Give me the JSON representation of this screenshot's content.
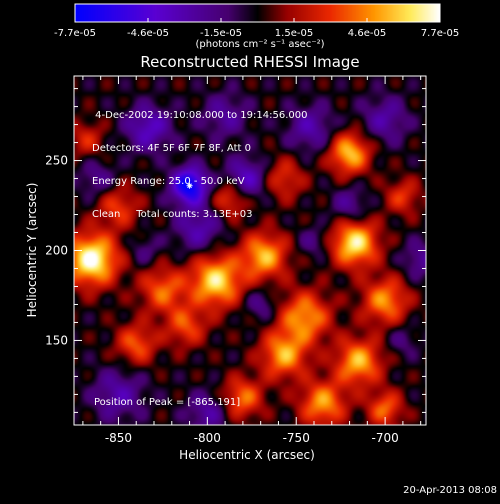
{
  "chart_data": {
    "type": "heatmap",
    "title": "Reconstructed RHESSI Image",
    "xlabel": "Heliocentric X (arcsec)",
    "ylabel": "Heliocentric Y (arcsec)",
    "xlim": [
      -875,
      -677
    ],
    "ylim": [
      103,
      297
    ],
    "x_ticks": [
      -850,
      -800,
      -750,
      -700
    ],
    "y_ticks": [
      150,
      200,
      250
    ],
    "colorbar": {
      "min": -7.7e-05,
      "max": 7.7e-05,
      "tick_labels": [
        "-7.7e-05",
        "-4.6e-05",
        "-1.5e-05",
        "1.5e-05",
        "4.6e-05",
        "7.7e-05"
      ],
      "unit_label": "(photons cm⁻² s⁻¹ asec⁻²)",
      "colormap": "rhessi blue-black-red-yellow-white",
      "colors": [
        "#0000ff",
        "#4400cc",
        "#000000",
        "#aa0000",
        "#ff4400",
        "#ffaa00",
        "#ffff88",
        "#ffffff"
      ]
    },
    "info_lines": [
      " 4-Dec-2002 19:10:08.000 to 19:14:56.000",
      "Detectors: 4F 5F 6F 7F 8F, Att 0",
      "Energy Range: 25.0 - 50.0 keV",
      "Clean     Total counts: 3.13E+03"
    ],
    "peak_label": "Position of Peak = [-865,191]",
    "blobs": [
      {
        "x": -865,
        "y": 195,
        "v": 7.7e-05,
        "s": 10
      },
      {
        "x": -795,
        "y": 183,
        "v": 6.5e-05,
        "s": 10
      },
      {
        "x": -717,
        "y": 204,
        "v": 6.8e-05,
        "s": 9
      },
      {
        "x": -720,
        "y": 254,
        "v": 5.8e-05,
        "s": 8
      },
      {
        "x": -768,
        "y": 197,
        "v": 5.5e-05,
        "s": 9
      },
      {
        "x": -745,
        "y": 163,
        "v": 5e-05,
        "s": 10
      },
      {
        "x": -700,
        "y": 172,
        "v": 4.8e-05,
        "s": 9
      },
      {
        "x": -825,
        "y": 178,
        "v": 4e-05,
        "s": 9
      },
      {
        "x": -757,
        "y": 142,
        "v": 5.2e-05,
        "s": 9
      },
      {
        "x": -715,
        "y": 138,
        "v": 5.5e-05,
        "s": 9
      },
      {
        "x": -735,
        "y": 115,
        "v": 5e-05,
        "s": 9
      },
      {
        "x": -780,
        "y": 118,
        "v": 4.2e-05,
        "s": 8
      },
      {
        "x": -700,
        "y": 112,
        "v": 4e-05,
        "s": 7
      },
      {
        "x": -812,
        "y": 158,
        "v": 3.5e-05,
        "s": 8
      },
      {
        "x": -850,
        "y": 224,
        "v": 3.2e-05,
        "s": 8
      },
      {
        "x": -787,
        "y": 229,
        "v": 3.6e-05,
        "s": 7
      },
      {
        "x": -757,
        "y": 240,
        "v": 3e-05,
        "s": 8
      },
      {
        "x": -840,
        "y": 148,
        "v": 3.8e-05,
        "s": 8
      },
      {
        "x": -690,
        "y": 230,
        "v": 3e-05,
        "s": 7
      },
      {
        "x": -868,
        "y": 262,
        "v": 2.5e-05,
        "s": 7
      },
      {
        "x": -810,
        "y": 236,
        "v": -7.7e-05,
        "s": 7
      },
      {
        "x": -778,
        "y": 240,
        "v": -4e-05,
        "s": 8
      },
      {
        "x": -833,
        "y": 268,
        "v": -3.8e-05,
        "s": 9
      },
      {
        "x": -805,
        "y": 212,
        "v": -3.2e-05,
        "s": 9
      },
      {
        "x": -742,
        "y": 268,
        "v": -3e-05,
        "s": 9
      },
      {
        "x": -700,
        "y": 273,
        "v": -2.8e-05,
        "s": 9
      },
      {
        "x": -850,
        "y": 120,
        "v": -3e-05,
        "s": 10
      },
      {
        "x": -800,
        "y": 110,
        "v": -2.8e-05,
        "s": 8
      },
      {
        "x": -720,
        "y": 225,
        "v": -2.5e-05,
        "s": 7
      },
      {
        "x": -770,
        "y": 170,
        "v": -2.2e-05,
        "s": 6
      },
      {
        "x": -680,
        "y": 195,
        "v": -2.5e-05,
        "s": 7
      },
      {
        "x": -862,
        "y": 240,
        "v": -2.2e-05,
        "s": 7
      },
      {
        "x": -790,
        "y": 275,
        "v": -2.5e-05,
        "s": 9
      },
      {
        "x": -740,
        "y": 205,
        "v": -1.8e-05,
        "s": 6
      },
      {
        "x": -835,
        "y": 200,
        "v": -1.6e-05,
        "s": 6
      },
      {
        "x": -690,
        "y": 150,
        "v": -1.6e-05,
        "s": 6
      }
    ]
  },
  "footer": {
    "date": "20-Apr-2013 08:08"
  }
}
